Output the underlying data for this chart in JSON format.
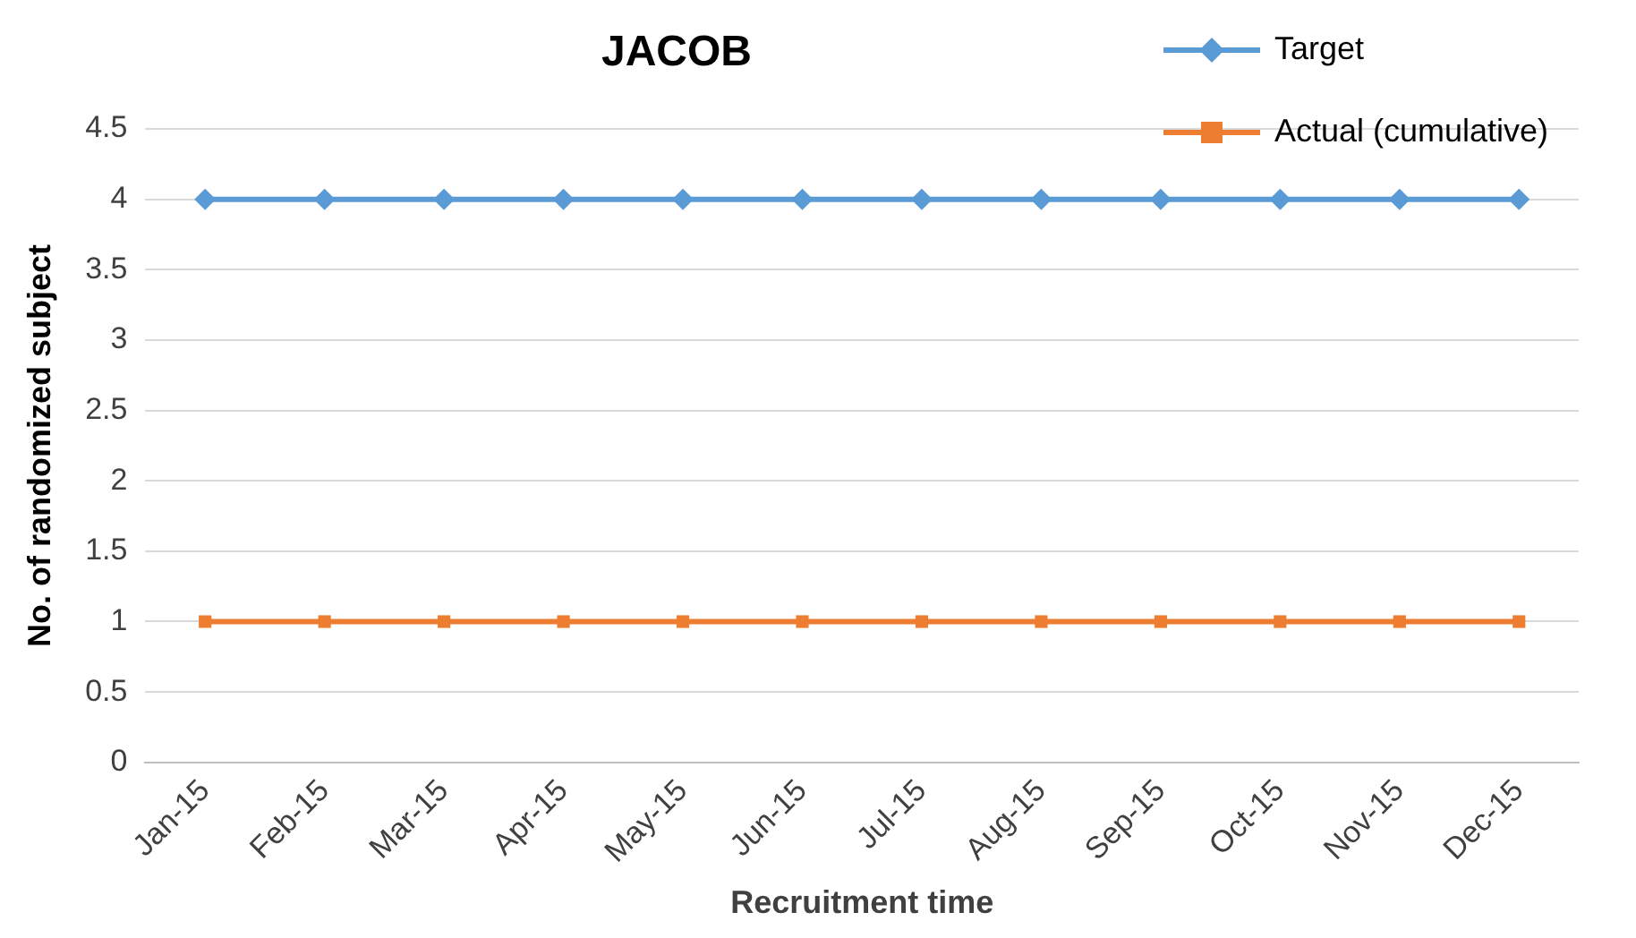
{
  "chart_data": {
    "type": "line",
    "title": "JACOB",
    "xlabel": "Recruitment time",
    "ylabel": "No. of randomized subject",
    "categories": [
      "Jan-15",
      "Feb-15",
      "Mar-15",
      "Apr-15",
      "May-15",
      "Jun-15",
      "Jul-15",
      "Aug-15",
      "Sep-15",
      "Oct-15",
      "Nov-15",
      "Dec-15"
    ],
    "series": [
      {
        "name": "Target",
        "color": "#5b9bd5",
        "marker": "diamond",
        "values": [
          4,
          4,
          4,
          4,
          4,
          4,
          4,
          4,
          4,
          4,
          4,
          4
        ]
      },
      {
        "name": "Actual (cumulative)",
        "color": "#ed7d31",
        "marker": "square",
        "values": [
          1,
          1,
          1,
          1,
          1,
          1,
          1,
          1,
          1,
          1,
          1,
          1
        ]
      }
    ],
    "ylim": [
      0,
      4.5
    ],
    "yticks": [
      0,
      0.5,
      1,
      1.5,
      2,
      2.5,
      3,
      3.5,
      4,
      4.5
    ],
    "grid": "y",
    "legend": "top right",
    "line_style": "solid"
  }
}
